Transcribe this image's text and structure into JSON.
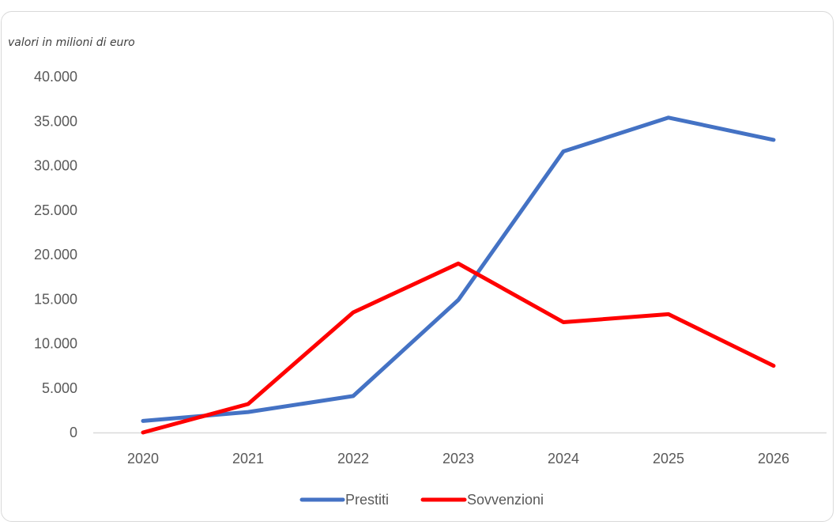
{
  "chart_data": {
    "type": "line",
    "title": "",
    "unit_note": "valori in milioni di euro",
    "xlabel": "",
    "ylabel": "",
    "categories": [
      "2020",
      "2021",
      "2022",
      "2023",
      "2024",
      "2025",
      "2026"
    ],
    "ylim": [
      0,
      40000
    ],
    "y_ticks": [
      {
        "value": 0,
        "label": "0"
      },
      {
        "value": 5000,
        "label": "5.000"
      },
      {
        "value": 10000,
        "label": "10.000"
      },
      {
        "value": 15000,
        "label": "15.000"
      },
      {
        "value": 20000,
        "label": "20.000"
      },
      {
        "value": 25000,
        "label": "25.000"
      },
      {
        "value": 30000,
        "label": "30.000"
      },
      {
        "value": 35000,
        "label": "35.000"
      },
      {
        "value": 40000,
        "label": "40.000"
      }
    ],
    "grid": false,
    "legend_position": "bottom",
    "series": [
      {
        "name": "Prestiti",
        "color": "#4472c4",
        "values": [
          1300,
          2300,
          4100,
          14900,
          31600,
          35400,
          32900
        ]
      },
      {
        "name": "Sovvenzioni",
        "color": "#ff0000",
        "values": [
          0,
          3200,
          13500,
          19000,
          12400,
          13300,
          7500
        ]
      }
    ],
    "axis_color": "#d9d9d9"
  }
}
